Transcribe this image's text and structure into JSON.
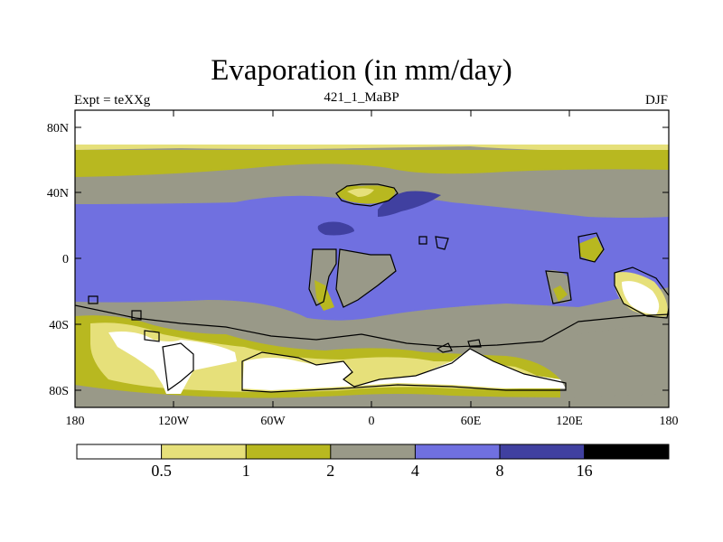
{
  "title": "Evaporation (in mm/day)",
  "left_label": "Expt = teXXg",
  "center_label": "421_1_MaBP",
  "right_label": "DJF",
  "y_ticks": [
    "80N",
    "40N",
    "0",
    "40S",
    "80S"
  ],
  "x_ticks": [
    "180",
    "120W",
    "60W",
    "0",
    "60E",
    "120E",
    "180"
  ],
  "colorbar": {
    "colors": [
      "#ffffff",
      "#e6e07a",
      "#b8b820",
      "#999988",
      "#7070e0",
      "#4040a0",
      "#000000"
    ],
    "labels": [
      "0.5",
      "1",
      "2",
      "4",
      "8",
      "16"
    ]
  },
  "colors": {
    "white": "#ffffff",
    "pale": "#e6e07a",
    "olive": "#b8b820",
    "gray": "#999988",
    "blue": "#7070e0",
    "dark": "#4040a0"
  }
}
